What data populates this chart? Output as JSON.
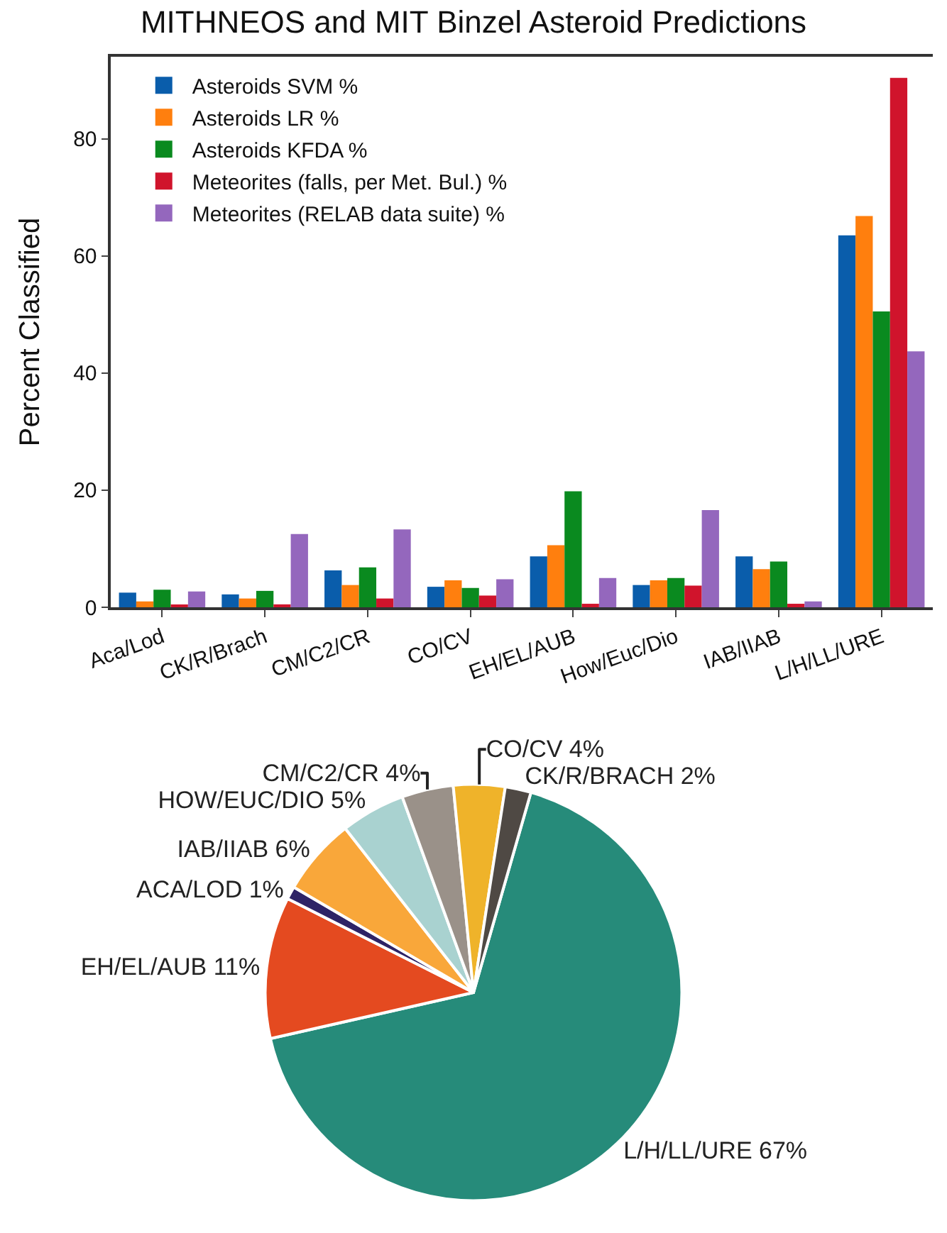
{
  "chart_data": [
    {
      "type": "bar",
      "title": "MITHNEOS and MIT Binzel Asteroid Predictions",
      "ylabel": "Percent Classified",
      "categories": [
        "Aca/Lod",
        "CK/R/Brach",
        "CM/C2/CR",
        "CO/CV",
        "EH/EL/AUB",
        "How/Euc/Dio",
        "IAB/IIAB",
        "L/H/LL/URE"
      ],
      "series": [
        {
          "name": "Asteroids SVM %",
          "color": "#0a5dab",
          "values": [
            2.5,
            2.2,
            6.3,
            3.5,
            8.7,
            3.8,
            8.7,
            63.5
          ]
        },
        {
          "name": "Asteroids LR %",
          "color": "#ff7f0e",
          "values": [
            1,
            1.5,
            3.8,
            4.6,
            10.6,
            4.6,
            6.5,
            66.8
          ]
        },
        {
          "name": "Asteroids KFDA %",
          "color": "#0a8a1f",
          "values": [
            3,
            2.8,
            6.8,
            3.3,
            19.8,
            5,
            7.8,
            50.5
          ]
        },
        {
          "name": "Meteorites (falls, per Met. Bul.) %",
          "color": "#d0142c",
          "values": [
            0.3,
            0.5,
            1.5,
            2,
            0.6,
            3.7,
            0.6,
            90.4
          ]
        },
        {
          "name": "Meteorites (RELAB data suite) %",
          "color": "#9467bd",
          "values": [
            2.7,
            12.5,
            13.3,
            4.8,
            5,
            16.6,
            1,
            43.7
          ]
        }
      ],
      "ylim": [
        0,
        94
      ],
      "yticks": [
        0,
        20,
        40,
        60,
        80
      ],
      "grid": false,
      "legend": "top left"
    },
    {
      "type": "pie",
      "categories": [
        "L/H/LL/URE",
        "EH/EL/AUB",
        "ACA/LOD",
        "IAB/IIAB",
        "HOW/EUC/DIO",
        "CM/C2/CR",
        "CO/CV",
        "CK/R/BRACH"
      ],
      "values": [
        67,
        11,
        1,
        6,
        5,
        4,
        4,
        2
      ],
      "value_labels": [
        "67%",
        "11%",
        "1%",
        "6%",
        "5%",
        "4%",
        "4%",
        "2%"
      ],
      "colors": [
        "#268b7a",
        "#e44a20",
        "#2e2366",
        "#f9a73a",
        "#a9d2d0",
        "#9a9189",
        "#efb32a",
        "#4f4944"
      ]
    }
  ]
}
